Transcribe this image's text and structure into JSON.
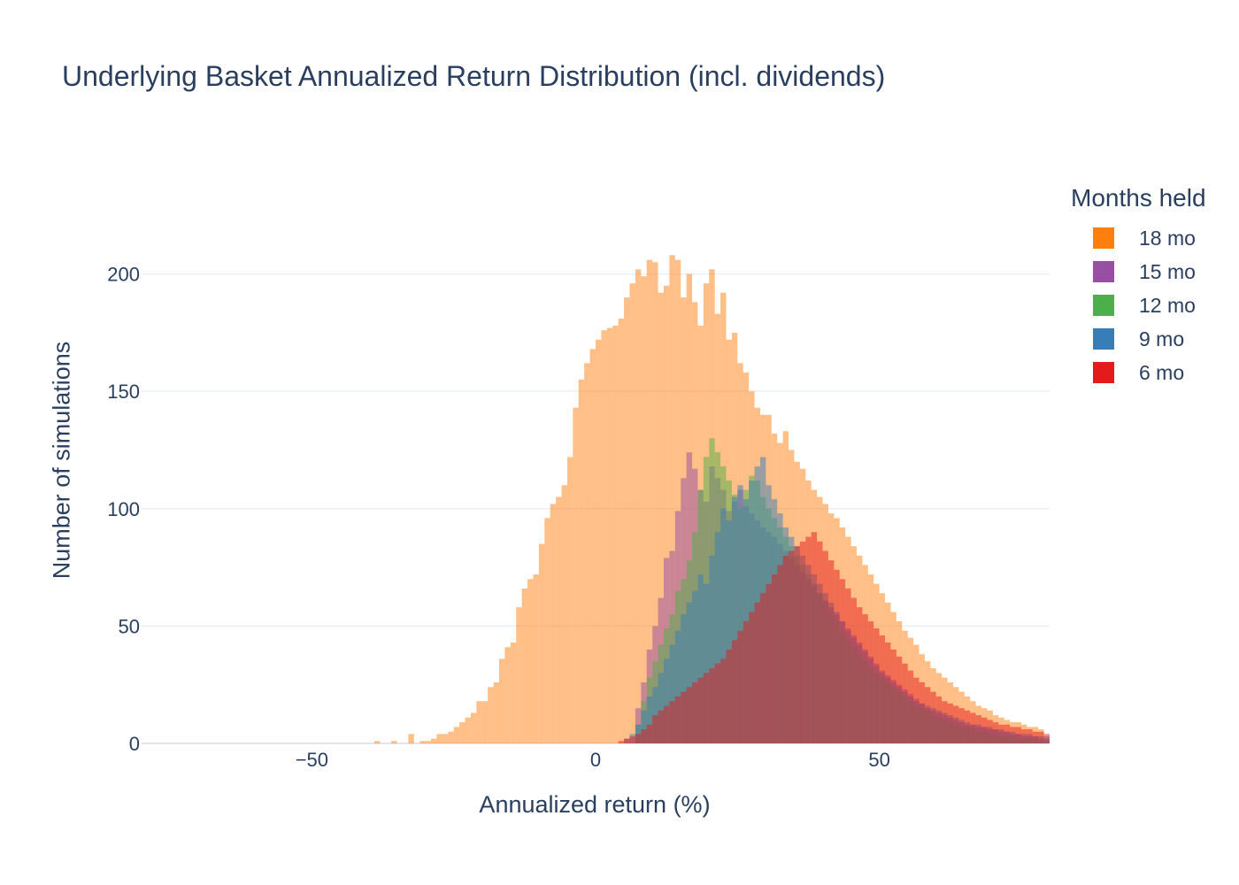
{
  "chart_data": {
    "type": "bar",
    "title": "Underlying Basket Annualized Return Distribution (incl. dividends)",
    "xlabel": "Annualized return (%)",
    "ylabel": "Number of simulations",
    "xlim": [
      -80,
      80
    ],
    "ylim": [
      0,
      230
    ],
    "xticks": [
      -50,
      0,
      50
    ],
    "yticks": [
      0,
      50,
      100,
      150,
      200
    ],
    "grid": true,
    "barmode": "overlay",
    "opacity": 0.5,
    "legend_title": "Months held",
    "legend_position": "right",
    "bin_width": 1,
    "series": [
      {
        "name": "18 mo",
        "color": "#ff7f0e",
        "bin_start": -39,
        "values": [
          1,
          0,
          0,
          1,
          0,
          0,
          4,
          0,
          1,
          1,
          2,
          4,
          4,
          5,
          7,
          9,
          11,
          13,
          18,
          18,
          24,
          26,
          36,
          41,
          43,
          58,
          66,
          70,
          72,
          85,
          96,
          102,
          105,
          110,
          122,
          143,
          155,
          162,
          168,
          172,
          176,
          177,
          178,
          181,
          190,
          196,
          202,
          199,
          206,
          205,
          192,
          195,
          208,
          206,
          190,
          200,
          188,
          178,
          196,
          202,
          183,
          192,
          172,
          175,
          162,
          158,
          150,
          143,
          140,
          140,
          132,
          128,
          133,
          125,
          120,
          117,
          112,
          108,
          105,
          102,
          98,
          96,
          92,
          88,
          84,
          80,
          76,
          72,
          68,
          64,
          60,
          56,
          52,
          48,
          45,
          42,
          38,
          35,
          32,
          30,
          28,
          26,
          24,
          22,
          20,
          18,
          16,
          15,
          14,
          12,
          11,
          10,
          9,
          9,
          8,
          7,
          7,
          6
        ]
      },
      {
        "name": "15 mo",
        "color": "#984ea3",
        "bin_start": 7,
        "values": [
          15,
          26,
          40,
          50,
          62,
          79,
          82,
          99,
          113,
          124,
          117,
          108,
          103,
          118,
          113,
          108,
          99,
          103,
          108,
          101,
          98,
          95,
          92,
          90,
          88,
          85,
          82,
          79,
          76,
          73,
          70,
          67,
          64,
          61,
          58,
          55,
          52,
          49,
          46,
          43,
          40,
          37,
          34,
          31,
          29,
          27,
          25,
          23,
          21,
          19,
          17,
          15,
          14,
          13,
          12,
          11,
          10,
          9,
          8,
          8,
          7,
          7,
          6,
          6,
          5,
          5,
          4,
          4,
          3,
          3,
          3,
          2,
          2
        ]
      },
      {
        "name": "12 mo",
        "color": "#4daf4a",
        "bin_start": 7,
        "values": [
          8,
          18,
          28,
          35,
          42,
          49,
          55,
          65,
          70,
          78,
          90,
          108,
          122,
          130,
          124,
          118,
          112,
          106,
          100,
          108,
          114,
          112,
          105,
          100,
          96,
          92,
          88,
          84,
          80,
          76,
          72,
          68,
          64,
          60,
          56,
          52,
          48,
          44,
          41,
          38,
          35,
          32,
          30,
          28,
          26,
          24,
          22,
          20,
          18,
          16,
          15,
          14,
          12,
          11,
          10,
          9,
          8,
          7,
          7,
          6,
          5,
          5,
          4,
          4,
          3,
          3,
          3,
          2,
          2,
          2,
          2,
          1,
          1
        ]
      },
      {
        "name": "9 mo",
        "color": "#377eb8",
        "bin_start": 5,
        "values": [
          2,
          4,
          8,
          14,
          20,
          24,
          30,
          36,
          42,
          48,
          55,
          60,
          65,
          72,
          68,
          80,
          90,
          100,
          95,
          105,
          110,
          104,
          112,
          118,
          122,
          110,
          104,
          98,
          92,
          88,
          84,
          80,
          76,
          72,
          68,
          64,
          60,
          56,
          52,
          48,
          45,
          42,
          39,
          36,
          33,
          30,
          28,
          26,
          24,
          22,
          20,
          18,
          17,
          16,
          15,
          14,
          13,
          12,
          11,
          10,
          9,
          8,
          8,
          7,
          7,
          6,
          6,
          5,
          5,
          4,
          4,
          4,
          3,
          3,
          3,
          2,
          2
        ]
      },
      {
        "name": "6 mo",
        "color": "#e41a1c",
        "bin_start": 4,
        "values": [
          1,
          2,
          3,
          4,
          6,
          8,
          12,
          14,
          16,
          18,
          20,
          22,
          24,
          26,
          28,
          30,
          32,
          34,
          36,
          40,
          44,
          48,
          52,
          56,
          60,
          64,
          68,
          72,
          76,
          80,
          82,
          84,
          86,
          88,
          90,
          86,
          82,
          78,
          74,
          70,
          66,
          62,
          58,
          55,
          52,
          49,
          46,
          43,
          40,
          37,
          34,
          31,
          28,
          26,
          24,
          22,
          20,
          18,
          17,
          16,
          15,
          14,
          13,
          12,
          11,
          10,
          9,
          8,
          8,
          7,
          7,
          6,
          6,
          5,
          5,
          4
        ]
      }
    ]
  }
}
